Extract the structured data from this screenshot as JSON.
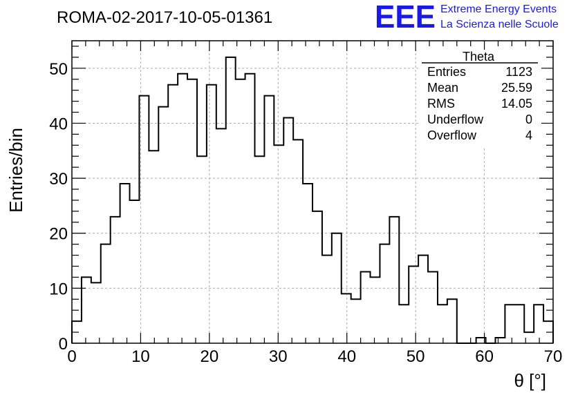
{
  "header": {
    "run_title": "ROMA-02-2017-10-05-01361",
    "brand_logo": "EEE",
    "brand_line1": "Extreme Energy Events",
    "brand_line2": "La Scienza nelle Scuole"
  },
  "stats": {
    "title": "Theta",
    "rows": [
      {
        "label": "Entries",
        "value": "1123"
      },
      {
        "label": "Mean",
        "value": "25.59"
      },
      {
        "label": "RMS",
        "value": "14.05"
      },
      {
        "label": "Underflow",
        "value": "0"
      },
      {
        "label": "Overflow",
        "value": "4"
      }
    ]
  },
  "chart_data": {
    "type": "bar",
    "title": "ROMA-02-2017-10-05-01361",
    "xlabel": "θ [°]",
    "ylabel": "Entries/bin",
    "xlim": [
      0,
      70
    ],
    "ylim": [
      0,
      55
    ],
    "bin_width": 1.4,
    "xticks": [
      0,
      10,
      20,
      30,
      40,
      50,
      60,
      70
    ],
    "yticks": [
      0,
      10,
      20,
      30,
      40,
      50
    ],
    "grid": true,
    "values": [
      4,
      12,
      11,
      18,
      23,
      29,
      26,
      45,
      35,
      43,
      47,
      49,
      48,
      34,
      47,
      39,
      52,
      48,
      49,
      34,
      45,
      36,
      41,
      37,
      29,
      24,
      16,
      20,
      9,
      8,
      13,
      12,
      18,
      23,
      7,
      14,
      16,
      13,
      7,
      8,
      0,
      0,
      1,
      0,
      1,
      7,
      7,
      2,
      7,
      4
    ]
  }
}
